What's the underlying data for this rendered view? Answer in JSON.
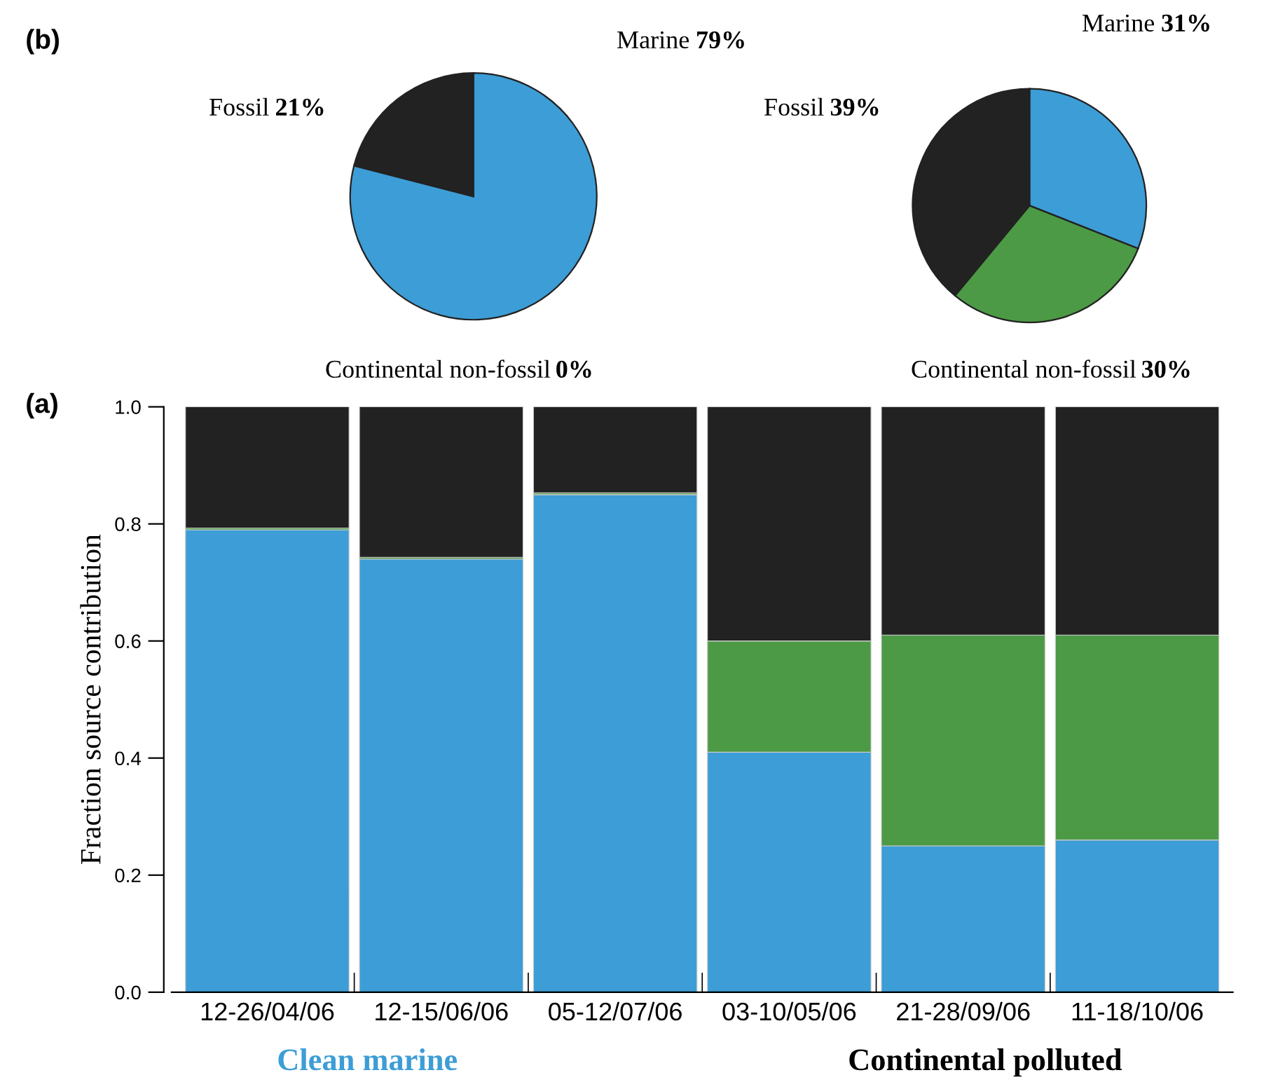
{
  "chart_data": [
    {
      "type": "pie",
      "categories": [
        "Marine",
        "Continental non-fossil",
        "Fossil"
      ],
      "values": [
        79,
        0,
        21
      ],
      "value_labels": [
        "79%",
        "0%",
        "21%"
      ],
      "colors": [
        "#3d9dd6",
        "#4c9a45",
        "#222222"
      ],
      "annotations": [
        "(b)"
      ]
    },
    {
      "type": "pie",
      "categories": [
        "Marine",
        "Continental non-fossil",
        "Fossil"
      ],
      "values": [
        31,
        30,
        39
      ],
      "value_labels": [
        "31%",
        "30%",
        "39%"
      ],
      "colors": [
        "#3d9dd6",
        "#4c9a45",
        "#222222"
      ]
    },
    {
      "type": "bar",
      "stacked": true,
      "ylabel": "Fraction source contribution",
      "categories": [
        "12-26/04/06",
        "12-15/06/06",
        "05-12/07/06",
        "03-10/05/06",
        "21-28/09/06",
        "11-18/10/06"
      ],
      "series": [
        {
          "color": "#3d9dd6",
          "values": [
            0.79,
            0.74,
            0.85,
            0.41,
            0.25,
            0.26
          ]
        },
        {
          "color": "#4c9a45",
          "values": [
            0.003,
            0.003,
            0.003,
            0.19,
            0.36,
            0.35
          ]
        },
        {
          "color": "#222222",
          "values": [
            0.207,
            0.257,
            0.147,
            0.4,
            0.39,
            0.39
          ]
        }
      ],
      "ylim": [
        0,
        1
      ],
      "yticks": [
        {
          "value": 0,
          "label": "0.0"
        },
        {
          "value": 0.2,
          "label": "0.2"
        },
        {
          "value": 0.4,
          "label": "0.4"
        },
        {
          "value": 0.6,
          "label": "0.6"
        },
        {
          "value": 0.8,
          "label": "0.8"
        },
        {
          "value": 1,
          "label": "1.0"
        }
      ],
      "annotations": [
        "(a)",
        "Clean marine",
        "Continental polluted"
      ],
      "grid": false,
      "legend": false
    }
  ]
}
